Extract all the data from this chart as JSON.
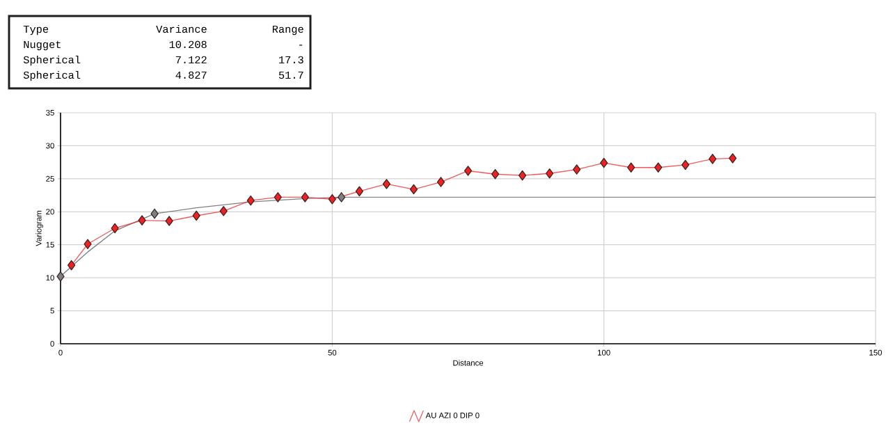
{
  "chart_data": {
    "type": "line",
    "xlabel": "Distance",
    "ylabel": "Variogram",
    "xlim": [
      0,
      150
    ],
    "ylim": [
      0,
      35
    ],
    "xticks": [
      0,
      50,
      100,
      150
    ],
    "yticks": [
      0,
      5,
      10,
      15,
      20,
      25,
      30,
      35
    ],
    "grid": true,
    "legend": "bottom",
    "annotations": [
      "Type",
      "Variance",
      "Range",
      "Nugget",
      "10.208",
      "-",
      "Spherical",
      "7.122",
      "17.3",
      "Spherical",
      "4.827",
      "51.7"
    ],
    "series": [
      {
        "color": "#808080",
        "marker": "none",
        "x": [
          0,
          2,
          5,
          10,
          17.3,
          25,
          35,
          45,
          51.7,
          150
        ],
        "values": [
          10.2,
          11.7,
          13.9,
          17.1,
          19.7,
          20.6,
          21.5,
          22.0,
          22.2,
          22.2
        ]
      },
      {
        "type": "scatter",
        "color": "#7f7f7f",
        "marker": "diamond",
        "x": [
          0,
          17.3,
          51.7
        ],
        "values": [
          10.2,
          19.7,
          22.2
        ]
      },
      {
        "name": "AU AZI 0 DIP 0",
        "color": "#ee2222",
        "marker": "diamond",
        "x": [
          2,
          5,
          10,
          15,
          20,
          25,
          30,
          35,
          40,
          45,
          50,
          55,
          60,
          65,
          70,
          75,
          80,
          85,
          90,
          95,
          100,
          105,
          110,
          115,
          120,
          123.7
        ],
        "values": [
          11.9,
          15.1,
          17.5,
          18.7,
          18.6,
          19.4,
          20.1,
          21.7,
          22.2,
          22.2,
          21.9,
          23.1,
          24.2,
          23.4,
          24.5,
          26.2,
          25.7,
          25.5,
          25.8,
          26.4,
          27.4,
          26.7,
          26.7,
          27.1,
          28.0,
          28.1
        ]
      }
    ]
  }
}
